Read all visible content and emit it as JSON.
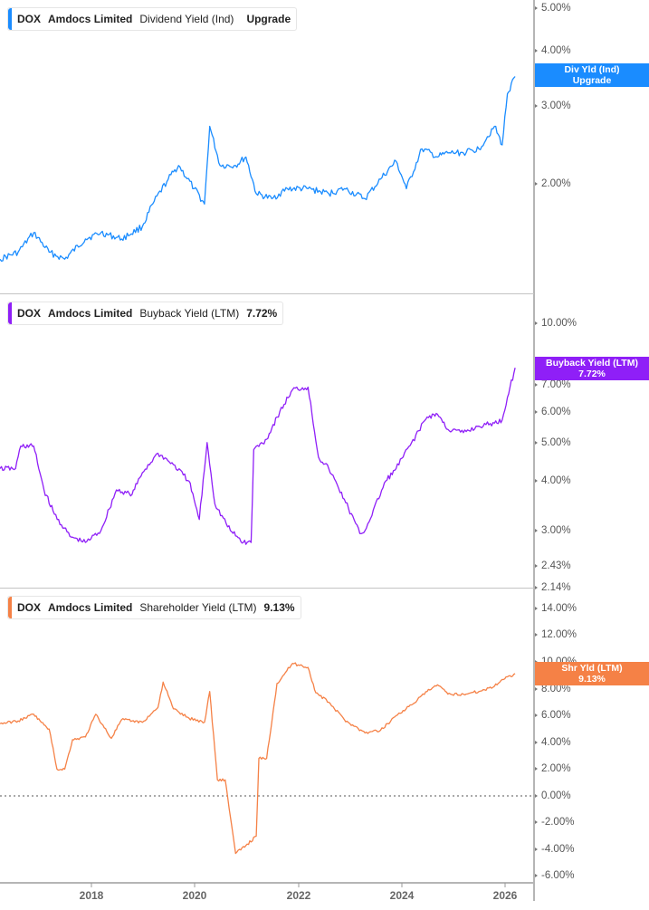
{
  "chart_data": [
    {
      "type": "line",
      "title": "DOX Amdocs Limited Dividend Yield (Ind)",
      "ticker": "DOX",
      "company": "Amdocs Limited",
      "metric": "Dividend Yield (Ind)",
      "scale": "log",
      "ylim": [
        1.2,
        5.2
      ],
      "y_ticks": [
        "5.00%",
        "4.00%",
        "3.00%",
        "2.00%"
      ],
      "x_ticks": [
        "2018",
        "2020",
        "2022",
        "2024",
        "2026"
      ],
      "x": [
        2016.25,
        2016.6,
        2016.9,
        2017.2,
        2017.5,
        2017.9,
        2018.2,
        2018.6,
        2019.0,
        2019.2,
        2019.5,
        2019.7,
        2020.0,
        2020.2,
        2020.3,
        2020.5,
        2020.8,
        2021.0,
        2021.2,
        2021.5,
        2021.8,
        2022.2,
        2022.6,
        2022.9,
        2023.3,
        2023.6,
        2023.9,
        2024.1,
        2024.4,
        2024.7,
        2024.9,
        2025.2,
        2025.5,
        2025.8,
        2025.95,
        2026.05,
        2026.2
      ],
      "values": [
        1.35,
        1.4,
        1.55,
        1.4,
        1.35,
        1.5,
        1.55,
        1.5,
        1.6,
        1.8,
        2.05,
        2.2,
        1.95,
        1.8,
        2.7,
        2.2,
        2.2,
        2.3,
        1.9,
        1.85,
        1.95,
        1.95,
        1.9,
        1.95,
        1.85,
        2.05,
        2.25,
        1.95,
        2.4,
        2.3,
        2.35,
        2.35,
        2.4,
        2.7,
        2.45,
        3.2,
        3.5
      ],
      "current_label": "Div Yld (Ind) Upgrade",
      "color": "#1a8cff"
    },
    {
      "type": "line",
      "title": "DOX Amdocs Limited Buyback Yield (LTM) 7.72%",
      "ticker": "DOX",
      "company": "Amdocs Limited",
      "metric": "Buyback Yield (LTM)",
      "scale": "log",
      "ylim": [
        2.14,
        11.5
      ],
      "y_ticks": [
        "10.00%",
        "7.00%",
        "6.00%",
        "5.00%",
        "4.00%",
        "3.00%",
        "2.43%",
        "2.14%"
      ],
      "x_ticks": [
        "2018",
        "2020",
        "2022",
        "2024",
        "2026"
      ],
      "x": [
        2016.25,
        2016.55,
        2016.65,
        2016.9,
        2017.1,
        2017.3,
        2017.6,
        2017.9,
        2018.2,
        2018.5,
        2018.8,
        2019.0,
        2019.3,
        2019.6,
        2019.9,
        2020.1,
        2020.25,
        2020.4,
        2020.7,
        2020.95,
        2021.1,
        2021.15,
        2021.4,
        2021.6,
        2021.9,
        2022.2,
        2022.4,
        2022.6,
        2022.9,
        2023.2,
        2023.3,
        2023.7,
        2023.9,
        2024.2,
        2024.5,
        2024.7,
        2024.9,
        2025.2,
        2025.5,
        2025.8,
        2025.95,
        2026.05,
        2026.2
      ],
      "values": [
        4.3,
        4.3,
        4.9,
        4.9,
        3.8,
        3.3,
        2.9,
        2.8,
        3.0,
        3.8,
        3.7,
        4.2,
        4.7,
        4.4,
        4.0,
        3.2,
        5.0,
        3.5,
        3.0,
        2.8,
        2.8,
        4.8,
        5.1,
        5.8,
        6.8,
        6.9,
        4.6,
        4.3,
        3.6,
        2.95,
        3.0,
        4.0,
        4.3,
        5.0,
        5.8,
        5.9,
        5.4,
        5.3,
        5.5,
        5.6,
        5.7,
        6.5,
        7.72
      ],
      "current_label": "Buyback Yield (LTM) 7.72%",
      "current_value": 7.72,
      "color": "#8f1ff7"
    },
    {
      "type": "line",
      "title": "DOX Amdocs Limited Shareholder Yield (LTM) 9.13%",
      "ticker": "DOX",
      "company": "Amdocs Limited",
      "metric": "Shareholder Yield (LTM)",
      "scale": "linear",
      "ylim": [
        -6.5,
        15
      ],
      "y_ticks": [
        "14.00%",
        "12.00%",
        "10.00%",
        "8.00%",
        "6.00%",
        "4.00%",
        "2.00%",
        "0.00%",
        "-2.00%",
        "-4.00%",
        "-6.00%"
      ],
      "x_ticks": [
        "2018",
        "2020",
        "2022",
        "2024",
        "2026"
      ],
      "x": [
        2016.25,
        2016.6,
        2016.9,
        2017.1,
        2017.2,
        2017.35,
        2017.5,
        2017.65,
        2017.9,
        2018.1,
        2018.4,
        2018.6,
        2018.8,
        2019.0,
        2019.3,
        2019.4,
        2019.6,
        2019.9,
        2020.2,
        2020.3,
        2020.45,
        2020.6,
        2020.8,
        2021.0,
        2021.2,
        2021.25,
        2021.4,
        2021.6,
        2021.9,
        2022.2,
        2022.35,
        2022.6,
        2022.9,
        2023.3,
        2023.6,
        2023.9,
        2024.2,
        2024.5,
        2024.7,
        2024.9,
        2025.2,
        2025.5,
        2025.8,
        2025.95,
        2026.2
      ],
      "values": [
        5.4,
        5.6,
        6.1,
        5.3,
        5.0,
        2.0,
        2.0,
        4.2,
        4.4,
        6.1,
        4.3,
        5.7,
        5.6,
        5.5,
        6.6,
        8.5,
        6.5,
        5.8,
        5.5,
        7.8,
        1.2,
        1.2,
        -4.3,
        -3.7,
        -3.0,
        2.8,
        2.8,
        8.4,
        9.9,
        9.6,
        7.7,
        7.0,
        5.7,
        4.7,
        4.9,
        6.0,
        6.8,
        7.8,
        8.3,
        7.6,
        7.6,
        7.8,
        8.2,
        8.7,
        9.13
      ],
      "current_label": "Shr Yld (LTM) 9.13%",
      "current_value": 9.13,
      "zero_line": true,
      "color": "#f58146"
    }
  ],
  "panels": [
    {
      "ticker": "DOX",
      "company": "Amdocs Limited",
      "metric": "Dividend Yield (Ind)",
      "value": "Upgrade",
      "tag_line1": "Div Yld (Ind)",
      "tag_line2": "Upgrade",
      "color": "#1a8cff"
    },
    {
      "ticker": "DOX",
      "company": "Amdocs Limited",
      "metric": "Buyback Yield (LTM)",
      "value": "7.72%",
      "tag_line1": "Buyback Yield (LTM)",
      "tag_line2": "7.72%",
      "color": "#8f1ff7"
    },
    {
      "ticker": "DOX",
      "company": "Amdocs Limited",
      "metric": "Shareholder Yield (LTM)",
      "value": "9.13%",
      "tag_line1": "Shr Yld (LTM)",
      "tag_line2": "9.13%",
      "color": "#f58146"
    }
  ],
  "axes": {
    "p1_ticks": [
      "5.00%",
      "4.00%",
      "3.00%",
      "2.00%"
    ],
    "p2_ticks": [
      "10.00%",
      "7.00%",
      "6.00%",
      "5.00%",
      "4.00%",
      "3.00%",
      "2.43%",
      "2.14%"
    ],
    "p3_ticks": [
      "14.00%",
      "12.00%",
      "10.00%",
      "8.00%",
      "6.00%",
      "4.00%",
      "2.00%",
      "0.00%",
      "-2.00%",
      "-4.00%",
      "-6.00%"
    ],
    "x_ticks": [
      "2018",
      "2020",
      "2022",
      "2024",
      "2026"
    ]
  }
}
